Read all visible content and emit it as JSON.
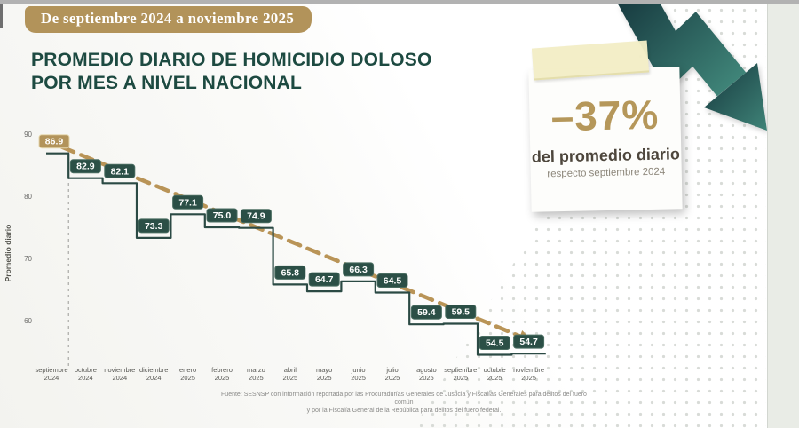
{
  "banner": {
    "label": "De septiembre 2024 a noviembre 2025"
  },
  "title": {
    "line1": "PROMEDIO DIARIO DE HOMICIDIO DOLOSO",
    "line2": "POR MES A NIVEL NACIONAL"
  },
  "callout": {
    "value": "–37%",
    "line1": "del promedio diario",
    "line2": "respecto septiembre 2024"
  },
  "chart_data": {
    "type": "line",
    "subtype": "step",
    "title": "Promedio diario de homicidio doloso por mes a nivel nacional",
    "categories": [
      "septiembre 2024",
      "octubre 2024",
      "noviembre 2024",
      "diciembre 2024",
      "enero 2025",
      "febrero 2025",
      "marzo 2025",
      "abril 2025",
      "mayo 2025",
      "junio 2025",
      "julio 2025",
      "agosto 2025",
      "septiembre 2025",
      "octubre 2025",
      "noviembre 2025"
    ],
    "values": [
      86.9,
      82.9,
      82.1,
      73.3,
      77.1,
      75.0,
      74.9,
      65.8,
      64.7,
      66.3,
      64.5,
      59.4,
      59.5,
      54.5,
      54.7
    ],
    "xlabel": "",
    "ylabel": "Promedio diario",
    "yticks": [
      90,
      80,
      70,
      60
    ],
    "ylim": [
      52,
      92
    ],
    "grid": false,
    "legend": false,
    "annotations": {
      "highlight_first_label": true,
      "reference_dashed_vertical_at": "septiembre 2024",
      "trendline": "dashed gold arrow from first to last value"
    },
    "colors": {
      "line": "#2b4a44",
      "label_box": "#2b4f46",
      "label_box_border": "#4a6d61",
      "label_text": "#ffffff",
      "first_label_box": "#b2935a",
      "trend": "#b99457",
      "axis_text": "#6b6b69"
    }
  },
  "source": {
    "line1": "Fuente: SESNSP con información reportada por las Procuradurías Generales de Justicia y Fiscalías Generales para delitos del fuero común",
    "line2": "y por la Fiscalía General de la República para delitos del fuero federal."
  }
}
